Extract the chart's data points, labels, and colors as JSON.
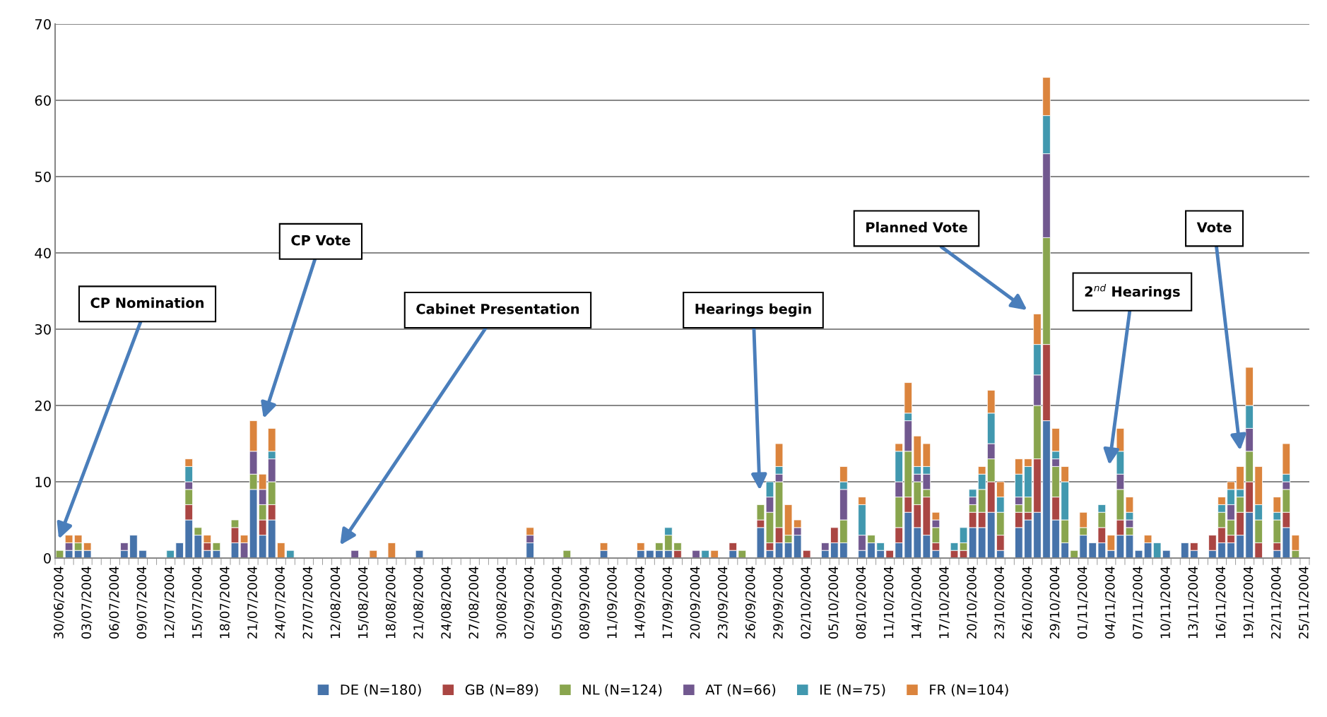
{
  "chart_data": {
    "type": "bar",
    "stacked": true,
    "categories": [
      "30/06/2004",
      null,
      null,
      "03/07/2004",
      null,
      null,
      "06/07/2004",
      null,
      null,
      "09/07/2004",
      null,
      null,
      "12/07/2004",
      null,
      null,
      "15/07/2004",
      null,
      null,
      "18/07/2004",
      null,
      null,
      "21/07/2004",
      null,
      null,
      "24/07/2004",
      null,
      null,
      "27/07/2004",
      null,
      null,
      "12/08/2004",
      null,
      null,
      "15/08/2004",
      null,
      null,
      "18/08/2004",
      null,
      null,
      "21/08/2004",
      null,
      null,
      "24/08/2004",
      null,
      null,
      "27/08/2004",
      null,
      null,
      "30/08/2004",
      null,
      null,
      "02/09/2004",
      null,
      null,
      "05/09/2004",
      null,
      null,
      "08/09/2004",
      null,
      null,
      "11/09/2004",
      null,
      null,
      "14/09/2004",
      null,
      null,
      "17/09/2004",
      null,
      null,
      "20/09/2004",
      null,
      null,
      "23/09/2004",
      null,
      null,
      "26/09/2004",
      null,
      null,
      "29/09/2004",
      null,
      null,
      "02/10/2004",
      null,
      null,
      "05/10/2004",
      null,
      null,
      "08/10/2004",
      null,
      null,
      "11/10/2004",
      null,
      null,
      "14/10/2004",
      null,
      null,
      "17/10/2004",
      null,
      null,
      "20/10/2004",
      null,
      null,
      "23/10/2004",
      null,
      null,
      "26/10/2004",
      null,
      null,
      "29/10/2004",
      null,
      null,
      "01/11/2004",
      null,
      null,
      "04/11/2004",
      null,
      null,
      "07/11/2004",
      null,
      null,
      "10/11/2004",
      null,
      null,
      "13/11/2004",
      null,
      null,
      "16/11/2004",
      null,
      null,
      "19/11/2004",
      null,
      null,
      "22/11/2004",
      null,
      null,
      "25/11/2004"
    ],
    "series": [
      {
        "name": "DE (N=180)",
        "color": "#4673aa",
        "values": [
          0,
          1,
          1,
          1,
          0,
          0,
          0,
          1,
          3,
          1,
          0,
          0,
          0,
          2,
          5,
          3,
          1,
          1,
          0,
          2,
          0,
          9,
          3,
          5,
          0,
          0,
          0,
          0,
          0,
          0,
          0,
          0,
          0,
          0,
          0,
          0,
          0,
          0,
          0,
          1,
          0,
          0,
          0,
          0,
          0,
          0,
          0,
          0,
          0,
          0,
          0,
          2,
          0,
          0,
          0,
          0,
          0,
          0,
          0,
          1,
          0,
          0,
          0,
          1,
          1,
          1,
          1,
          0,
          0,
          0,
          0,
          0,
          0,
          1,
          0,
          0,
          4,
          1,
          2,
          2,
          3,
          0,
          0,
          1,
          2,
          2,
          0,
          1,
          2,
          1,
          0,
          2,
          6,
          4,
          3,
          1,
          0,
          0,
          0,
          4,
          4,
          6,
          1,
          0,
          4,
          5,
          6,
          18,
          5,
          2,
          0,
          3,
          2,
          2,
          1,
          3,
          3,
          1,
          2,
          0,
          1,
          0,
          2,
          1,
          0,
          1,
          2,
          2,
          3,
          6,
          0,
          0,
          1,
          4,
          0,
          0
        ]
      },
      {
        "name": "GB (N=89)",
        "color": "#aa4643",
        "values": [
          0,
          0,
          0,
          0,
          0,
          0,
          0,
          0,
          0,
          0,
          0,
          0,
          0,
          0,
          2,
          0,
          1,
          0,
          0,
          2,
          0,
          0,
          2,
          2,
          0,
          0,
          0,
          0,
          0,
          0,
          0,
          0,
          0,
          0,
          0,
          0,
          0,
          0,
          0,
          0,
          0,
          0,
          0,
          0,
          0,
          0,
          0,
          0,
          0,
          0,
          0,
          0,
          0,
          0,
          0,
          0,
          0,
          0,
          0,
          0,
          0,
          0,
          0,
          0,
          0,
          0,
          0,
          1,
          0,
          0,
          0,
          0,
          0,
          1,
          0,
          0,
          1,
          1,
          2,
          0,
          0,
          1,
          0,
          0,
          2,
          0,
          0,
          0,
          0,
          0,
          1,
          2,
          2,
          3,
          5,
          1,
          0,
          1,
          1,
          2,
          2,
          4,
          2,
          0,
          2,
          1,
          7,
          10,
          3,
          0,
          0,
          0,
          0,
          2,
          0,
          2,
          0,
          0,
          0,
          0,
          0,
          0,
          0,
          1,
          0,
          2,
          2,
          1,
          3,
          4,
          2,
          0,
          1,
          2,
          0,
          0
        ]
      },
      {
        "name": "NL (N=124)",
        "color": "#89a54e",
        "values": [
          1,
          0,
          1,
          0,
          0,
          0,
          0,
          0,
          0,
          0,
          0,
          0,
          0,
          0,
          2,
          1,
          0,
          1,
          0,
          1,
          0,
          2,
          2,
          3,
          0,
          0,
          0,
          0,
          0,
          0,
          0,
          0,
          0,
          0,
          0,
          0,
          0,
          0,
          0,
          0,
          0,
          0,
          0,
          0,
          0,
          0,
          0,
          0,
          0,
          0,
          0,
          0,
          0,
          0,
          0,
          1,
          0,
          0,
          0,
          0,
          0,
          0,
          0,
          0,
          0,
          1,
          2,
          1,
          0,
          0,
          0,
          0,
          0,
          0,
          1,
          0,
          2,
          4,
          6,
          1,
          0,
          0,
          0,
          0,
          0,
          3,
          0,
          0,
          1,
          0,
          0,
          4,
          6,
          3,
          1,
          2,
          0,
          0,
          1,
          1,
          3,
          3,
          3,
          0,
          1,
          2,
          7,
          14,
          4,
          3,
          1,
          1,
          0,
          2,
          0,
          4,
          1,
          0,
          0,
          0,
          0,
          0,
          0,
          0,
          0,
          0,
          2,
          2,
          2,
          4,
          3,
          0,
          3,
          3,
          1,
          0
        ]
      },
      {
        "name": "AT (N=66)",
        "color": "#71588f",
        "values": [
          0,
          1,
          0,
          0,
          0,
          0,
          0,
          1,
          0,
          0,
          0,
          0,
          0,
          0,
          1,
          0,
          0,
          0,
          0,
          0,
          2,
          3,
          2,
          3,
          0,
          0,
          0,
          0,
          0,
          0,
          0,
          0,
          1,
          0,
          0,
          0,
          0,
          0,
          0,
          0,
          0,
          0,
          0,
          0,
          0,
          0,
          0,
          0,
          0,
          0,
          0,
          1,
          0,
          0,
          0,
          0,
          0,
          0,
          0,
          0,
          0,
          0,
          0,
          0,
          0,
          0,
          0,
          0,
          0,
          1,
          0,
          0,
          0,
          0,
          0,
          0,
          0,
          2,
          1,
          0,
          1,
          0,
          0,
          1,
          0,
          4,
          0,
          2,
          0,
          0,
          0,
          2,
          4,
          1,
          2,
          1,
          0,
          0,
          0,
          1,
          0,
          2,
          0,
          0,
          1,
          0,
          4,
          11,
          1,
          0,
          0,
          0,
          0,
          0,
          0,
          2,
          1,
          0,
          0,
          0,
          0,
          0,
          0,
          0,
          0,
          0,
          0,
          2,
          0,
          3,
          0,
          0,
          0,
          1,
          0,
          0
        ]
      },
      {
        "name": "IE (N=75)",
        "color": "#4198af",
        "values": [
          0,
          0,
          0,
          0,
          0,
          0,
          0,
          0,
          0,
          0,
          0,
          0,
          1,
          0,
          2,
          0,
          0,
          0,
          0,
          0,
          0,
          0,
          0,
          1,
          0,
          1,
          0,
          0,
          0,
          0,
          0,
          0,
          0,
          0,
          0,
          0,
          0,
          0,
          0,
          0,
          0,
          0,
          0,
          0,
          0,
          0,
          0,
          0,
          0,
          0,
          0,
          0,
          0,
          0,
          0,
          0,
          0,
          0,
          0,
          0,
          0,
          0,
          0,
          0,
          0,
          0,
          1,
          0,
          0,
          0,
          1,
          0,
          0,
          0,
          0,
          0,
          0,
          2,
          1,
          0,
          0,
          0,
          0,
          0,
          0,
          1,
          0,
          4,
          0,
          1,
          0,
          4,
          1,
          1,
          1,
          0,
          0,
          1,
          2,
          1,
          2,
          4,
          2,
          0,
          3,
          4,
          4,
          5,
          1,
          5,
          0,
          0,
          0,
          1,
          0,
          3,
          1,
          0,
          0,
          2,
          0,
          0,
          0,
          0,
          0,
          0,
          1,
          2,
          1,
          3,
          2,
          0,
          1,
          1,
          0,
          0
        ]
      },
      {
        "name": "FR (N=104)",
        "color": "#db843d",
        "values": [
          0,
          1,
          1,
          1,
          0,
          0,
          0,
          0,
          0,
          0,
          0,
          0,
          0,
          0,
          1,
          0,
          1,
          0,
          0,
          0,
          1,
          4,
          2,
          3,
          2,
          0,
          0,
          0,
          0,
          0,
          0,
          0,
          0,
          0,
          1,
          0,
          2,
          0,
          0,
          0,
          0,
          0,
          0,
          0,
          0,
          0,
          0,
          0,
          0,
          0,
          0,
          1,
          0,
          0,
          0,
          0,
          0,
          0,
          0,
          1,
          0,
          0,
          0,
          1,
          0,
          0,
          0,
          0,
          0,
          0,
          0,
          1,
          0,
          0,
          0,
          0,
          0,
          0,
          3,
          4,
          1,
          0,
          0,
          0,
          0,
          2,
          0,
          1,
          0,
          0,
          0,
          1,
          4,
          4,
          3,
          1,
          0,
          0,
          0,
          0,
          1,
          3,
          2,
          0,
          2,
          1,
          4,
          5,
          3,
          2,
          0,
          2,
          0,
          0,
          2,
          3,
          2,
          0,
          1,
          0,
          0,
          0,
          0,
          0,
          0,
          0,
          1,
          1,
          3,
          5,
          5,
          0,
          2,
          4,
          2,
          0
        ]
      }
    ],
    "ylim": [
      0,
      70
    ],
    "yticks": [
      0,
      10,
      20,
      30,
      40,
      50,
      60,
      70
    ],
    "grid": "y",
    "legend": "bottom",
    "annotations": [
      "CP Nomination",
      "CP Vote",
      "Cabinet Presentation",
      "Hearings begin",
      "Planned Vote",
      "2$^{nd}$ Hearings",
      "Vote"
    ]
  }
}
